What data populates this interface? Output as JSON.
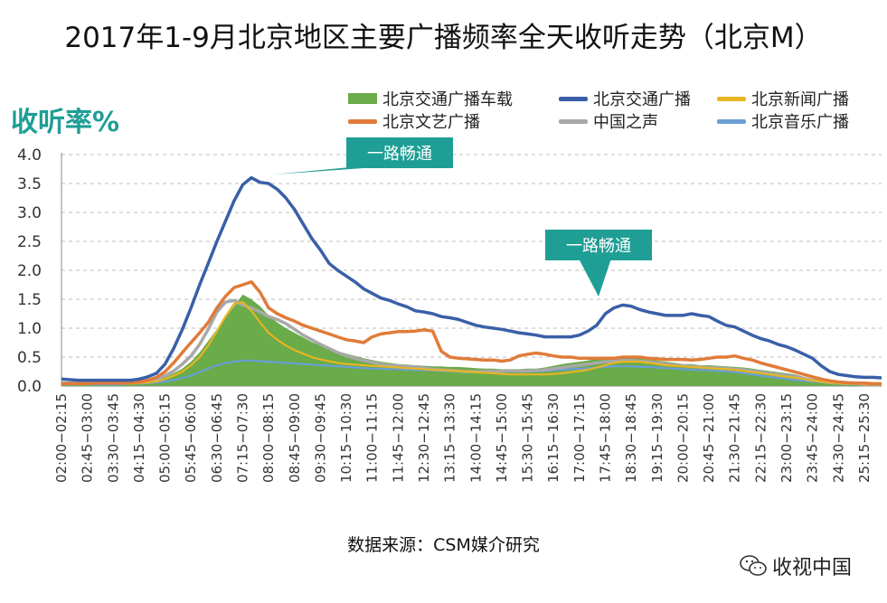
{
  "title": "2017年1-9月北京地区主要广播频率全天收听走势（北京M）",
  "source": "数据来源：CSM媒介研究",
  "watermark": "收视中国",
  "chart_data": {
    "type": "line",
    "ylabel": "收听率%",
    "ylim": [
      0,
      4.0
    ],
    "yticks": [
      "0.0",
      "0.5",
      "1.0",
      "1.5",
      "2.0",
      "2.5",
      "3.0",
      "3.5",
      "4.0"
    ],
    "grid": true,
    "legend_position": "top-right",
    "categories": [
      "02:00",
      "02:15",
      "02:30",
      "02:45",
      "03:00",
      "03:15",
      "03:30",
      "03:45",
      "04:00",
      "04:15",
      "04:30",
      "04:45",
      "05:00",
      "05:15",
      "05:30",
      "05:45",
      "06:00",
      "06:15",
      "06:30",
      "06:45",
      "07:00",
      "07:15",
      "07:30",
      "07:45",
      "08:00",
      "08:15",
      "08:30",
      "08:45",
      "09:00",
      "09:15",
      "09:30",
      "09:45",
      "10:00",
      "10:15",
      "10:30",
      "10:45",
      "11:00",
      "11:15",
      "11:30",
      "11:45",
      "12:00",
      "12:15",
      "12:30",
      "12:45",
      "13:00",
      "13:15",
      "13:30",
      "13:45",
      "14:00",
      "14:15",
      "14:30",
      "14:45",
      "15:00",
      "15:15",
      "15:30",
      "15:45",
      "16:00",
      "16:15",
      "16:30",
      "16:45",
      "17:00",
      "17:15",
      "17:30",
      "17:45",
      "18:00",
      "18:15",
      "18:30",
      "18:45",
      "19:00",
      "19:15",
      "19:30",
      "19:45",
      "20:00",
      "20:15",
      "20:30",
      "20:45",
      "21:00",
      "21:15",
      "21:30",
      "21:45",
      "22:00",
      "22:15",
      "22:30",
      "22:45",
      "23:00",
      "23:15",
      "23:30",
      "23:45",
      "24:00",
      "24:15",
      "24:30",
      "24:45",
      "25:00",
      "25:15",
      "25:30",
      "25:45"
    ],
    "tick_labels": [
      "02:00−02:15",
      "02:45−03:00",
      "03:30−03:45",
      "04:15−04:30",
      "05:00−05:15",
      "05:45−06:00",
      "06:30−06:45",
      "07:15−07:30",
      "08:00−08:15",
      "08:45−09:00",
      "09:30−09:45",
      "10:15−10:30",
      "11:00−11:15",
      "11:45−12:00",
      "12:30−12:45",
      "13:15−13:30",
      "14:00−14:15",
      "14:45−15:00",
      "15:30−15:45",
      "16:15−16:30",
      "17:00−17:15",
      "17:45−18:00",
      "18:30−18:45",
      "19:15−19:30",
      "20:00−20:15",
      "20:45−21:00",
      "21:30−21:45",
      "22:15−22:30",
      "23:00−23:15",
      "23:45−24:00",
      "24:30−24:45",
      "25:15−25:30"
    ],
    "series": [
      {
        "name": "北京交通广播车载",
        "style": "area",
        "color": "#6aab4a",
        "values": [
          0.05,
          0.05,
          0.05,
          0.05,
          0.05,
          0.05,
          0.05,
          0.06,
          0.06,
          0.07,
          0.08,
          0.1,
          0.15,
          0.22,
          0.3,
          0.42,
          0.58,
          0.78,
          0.98,
          1.18,
          1.38,
          1.58,
          1.5,
          1.38,
          1.22,
          1.1,
          1.0,
          0.92,
          0.84,
          0.76,
          0.7,
          0.65,
          0.6,
          0.56,
          0.52,
          0.48,
          0.45,
          0.42,
          0.4,
          0.38,
          0.37,
          0.36,
          0.35,
          0.34,
          0.34,
          0.33,
          0.33,
          0.32,
          0.31,
          0.3,
          0.3,
          0.29,
          0.29,
          0.29,
          0.3,
          0.3,
          0.32,
          0.35,
          0.38,
          0.4,
          0.42,
          0.44,
          0.47,
          0.5,
          0.5,
          0.5,
          0.48,
          0.48,
          0.46,
          0.44,
          0.42,
          0.4,
          0.38,
          0.38,
          0.36,
          0.36,
          0.35,
          0.34,
          0.33,
          0.32,
          0.3,
          0.28,
          0.26,
          0.24,
          0.22,
          0.2,
          0.16,
          0.12,
          0.08,
          0.06,
          0.05,
          0.04,
          0.04,
          0.03,
          0.03,
          0.03
        ]
      },
      {
        "name": "北京交通广播",
        "style": "line",
        "color": "#3a5fa8",
        "values": [
          0.12,
          0.11,
          0.1,
          0.1,
          0.1,
          0.1,
          0.1,
          0.1,
          0.1,
          0.12,
          0.16,
          0.22,
          0.38,
          0.65,
          0.98,
          1.35,
          1.75,
          2.12,
          2.5,
          2.85,
          3.2,
          3.48,
          3.6,
          3.52,
          3.5,
          3.4,
          3.25,
          3.05,
          2.8,
          2.55,
          2.35,
          2.12,
          2.0,
          1.9,
          1.8,
          1.68,
          1.6,
          1.52,
          1.48,
          1.42,
          1.37,
          1.3,
          1.28,
          1.25,
          1.2,
          1.18,
          1.15,
          1.1,
          1.05,
          1.02,
          1.0,
          0.98,
          0.95,
          0.92,
          0.9,
          0.88,
          0.85,
          0.85,
          0.85,
          0.85,
          0.88,
          0.95,
          1.05,
          1.25,
          1.35,
          1.4,
          1.38,
          1.32,
          1.28,
          1.25,
          1.22,
          1.22,
          1.22,
          1.25,
          1.22,
          1.2,
          1.12,
          1.05,
          1.02,
          0.95,
          0.88,
          0.82,
          0.78,
          0.72,
          0.68,
          0.62,
          0.55,
          0.48,
          0.35,
          0.25,
          0.2,
          0.18,
          0.16,
          0.15,
          0.15,
          0.14
        ]
      },
      {
        "name": "北京新闻广播",
        "style": "line",
        "color": "#e6b524",
        "values": [
          0.04,
          0.04,
          0.04,
          0.04,
          0.04,
          0.04,
          0.04,
          0.04,
          0.04,
          0.05,
          0.06,
          0.08,
          0.12,
          0.18,
          0.25,
          0.36,
          0.5,
          0.7,
          0.95,
          1.2,
          1.42,
          1.45,
          1.3,
          1.1,
          0.92,
          0.8,
          0.7,
          0.62,
          0.56,
          0.5,
          0.46,
          0.43,
          0.4,
          0.38,
          0.37,
          0.36,
          0.35,
          0.34,
          0.33,
          0.32,
          0.31,
          0.3,
          0.29,
          0.28,
          0.28,
          0.27,
          0.26,
          0.25,
          0.24,
          0.23,
          0.22,
          0.21,
          0.2,
          0.2,
          0.2,
          0.2,
          0.2,
          0.21,
          0.22,
          0.24,
          0.26,
          0.28,
          0.32,
          0.36,
          0.4,
          0.42,
          0.42,
          0.42,
          0.4,
          0.38,
          0.36,
          0.35,
          0.34,
          0.33,
          0.32,
          0.31,
          0.3,
          0.29,
          0.28,
          0.26,
          0.24,
          0.22,
          0.2,
          0.18,
          0.16,
          0.14,
          0.12,
          0.1,
          0.08,
          0.06,
          0.05,
          0.04,
          0.04,
          0.03,
          0.03,
          0.03
        ]
      },
      {
        "name": "北京文艺广播",
        "style": "line",
        "color": "#e07b39",
        "values": [
          0.04,
          0.04,
          0.04,
          0.04,
          0.05,
          0.05,
          0.05,
          0.05,
          0.06,
          0.07,
          0.1,
          0.15,
          0.25,
          0.4,
          0.58,
          0.75,
          0.92,
          1.1,
          1.35,
          1.55,
          1.7,
          1.75,
          1.8,
          1.62,
          1.35,
          1.25,
          1.18,
          1.12,
          1.05,
          1.0,
          0.95,
          0.9,
          0.85,
          0.8,
          0.78,
          0.75,
          0.85,
          0.9,
          0.92,
          0.94,
          0.94,
          0.95,
          0.97,
          0.95,
          0.6,
          0.5,
          0.48,
          0.47,
          0.46,
          0.45,
          0.45,
          0.43,
          0.45,
          0.52,
          0.55,
          0.57,
          0.55,
          0.52,
          0.5,
          0.5,
          0.48,
          0.48,
          0.48,
          0.48,
          0.48,
          0.5,
          0.5,
          0.5,
          0.48,
          0.47,
          0.46,
          0.46,
          0.46,
          0.45,
          0.46,
          0.48,
          0.5,
          0.5,
          0.52,
          0.48,
          0.45,
          0.4,
          0.36,
          0.32,
          0.28,
          0.24,
          0.2,
          0.16,
          0.12,
          0.09,
          0.07,
          0.06,
          0.05,
          0.05,
          0.04,
          0.04
        ]
      },
      {
        "name": "中国之声",
        "style": "line",
        "color": "#a8a8a8",
        "values": [
          0.05,
          0.05,
          0.05,
          0.05,
          0.05,
          0.05,
          0.05,
          0.05,
          0.06,
          0.07,
          0.09,
          0.12,
          0.18,
          0.26,
          0.38,
          0.52,
          0.72,
          0.98,
          1.28,
          1.45,
          1.48,
          1.4,
          1.35,
          1.28,
          1.2,
          1.15,
          1.08,
          0.98,
          0.88,
          0.8,
          0.72,
          0.65,
          0.58,
          0.52,
          0.48,
          0.44,
          0.41,
          0.38,
          0.36,
          0.35,
          0.34,
          0.33,
          0.31,
          0.29,
          0.28,
          0.27,
          0.26,
          0.25,
          0.25,
          0.25,
          0.26,
          0.26,
          0.26,
          0.26,
          0.26,
          0.27,
          0.28,
          0.3,
          0.32,
          0.34,
          0.36,
          0.38,
          0.4,
          0.42,
          0.43,
          0.44,
          0.44,
          0.43,
          0.42,
          0.4,
          0.38,
          0.36,
          0.35,
          0.34,
          0.33,
          0.32,
          0.31,
          0.3,
          0.29,
          0.28,
          0.26,
          0.24,
          0.22,
          0.2,
          0.18,
          0.16,
          0.13,
          0.1,
          0.08,
          0.06,
          0.05,
          0.04,
          0.04,
          0.03,
          0.03,
          0.03
        ]
      },
      {
        "name": "北京音乐广播",
        "style": "line",
        "color": "#6a9fd4",
        "values": [
          0.03,
          0.03,
          0.03,
          0.03,
          0.03,
          0.03,
          0.03,
          0.03,
          0.04,
          0.04,
          0.05,
          0.06,
          0.08,
          0.1,
          0.14,
          0.18,
          0.24,
          0.3,
          0.36,
          0.4,
          0.42,
          0.44,
          0.44,
          0.43,
          0.42,
          0.41,
          0.4,
          0.39,
          0.38,
          0.37,
          0.36,
          0.35,
          0.34,
          0.33,
          0.32,
          0.31,
          0.3,
          0.3,
          0.29,
          0.29,
          0.28,
          0.28,
          0.27,
          0.27,
          0.26,
          0.26,
          0.26,
          0.25,
          0.25,
          0.25,
          0.25,
          0.25,
          0.25,
          0.25,
          0.25,
          0.25,
          0.26,
          0.27,
          0.28,
          0.29,
          0.3,
          0.31,
          0.32,
          0.33,
          0.34,
          0.34,
          0.34,
          0.33,
          0.33,
          0.32,
          0.31,
          0.3,
          0.29,
          0.28,
          0.28,
          0.27,
          0.26,
          0.25,
          0.24,
          0.22,
          0.2,
          0.18,
          0.16,
          0.14,
          0.12,
          0.1,
          0.09,
          0.08,
          0.07,
          0.06,
          0.05,
          0.05,
          0.04,
          0.04,
          0.04,
          0.04
        ]
      }
    ],
    "annotations": [
      {
        "text": "一路畅通",
        "at_category": "07:30"
      },
      {
        "text": "一路畅通",
        "at_category": "18:00"
      }
    ]
  },
  "colors": {
    "accent": "#1f9e95",
    "grid": "#bdbdbd"
  }
}
